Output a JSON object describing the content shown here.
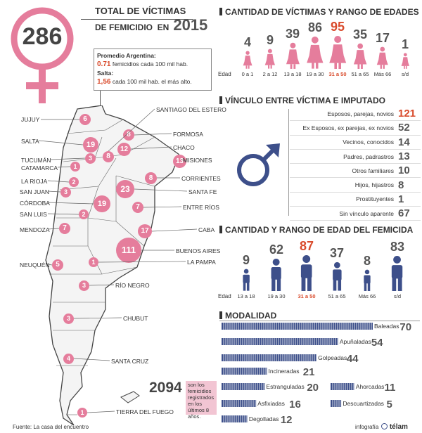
{
  "header": {
    "total": "286",
    "title_line1": "TOTAL DE VÍCTIMAS",
    "title_line2": "DE FEMICIDIO  EN",
    "year": "2015"
  },
  "promedio": {
    "line1": "Promedio Argentina:",
    "arg_value": "0.71",
    "arg_text": "femicidios cada 100 mil hab.",
    "salta_label": "Salta:",
    "salta_value": "1,56",
    "salta_text": "cada 100 mil hab. el más alto."
  },
  "map": {
    "provinces": [
      {
        "name": "JUJUY",
        "value": "6"
      },
      {
        "name": "SALTA",
        "value": "19"
      },
      {
        "name": "TUCUMÁN",
        "value": "3"
      },
      {
        "name": "CATAMARCA",
        "value": "1"
      },
      {
        "name": "LA RIOJA",
        "value": "2"
      },
      {
        "name": "SAN JUAN",
        "value": "3"
      },
      {
        "name": "CÓRDOBA",
        "value": "19"
      },
      {
        "name": "SAN LUIS",
        "value": "2"
      },
      {
        "name": "MENDOZA",
        "value": "7"
      },
      {
        "name": "NEUQUÉN",
        "value": "5"
      },
      {
        "name": "SANTIAGO DEL ESTERO",
        "value": "8"
      },
      {
        "name": "FORMOSA",
        "value": "8"
      },
      {
        "name": "CHACO",
        "value": "12"
      },
      {
        "name": "MISIONES",
        "value": "13"
      },
      {
        "name": "CORRIENTES",
        "value": "8"
      },
      {
        "name": "SANTA FE",
        "value": "23"
      },
      {
        "name": "ENTRE RÍOS",
        "value": "7"
      },
      {
        "name": "CABA",
        "value": "17"
      },
      {
        "name": "BUENOS AIRES",
        "value": "111"
      },
      {
        "name": "LA PAMPA",
        "value": "1"
      },
      {
        "name": "RÍO NEGRO",
        "value": "3"
      },
      {
        "name": "CHUBUT",
        "value": "3"
      },
      {
        "name": "SANTA CRUZ",
        "value": "4"
      },
      {
        "name": "TIERRA DEL FUEGO",
        "value": "1"
      }
    ]
  },
  "total_box": {
    "number": "2094",
    "text": "son los femicidios registrados en los últimos 8 años."
  },
  "footer": {
    "source": "Fuente: La casa del encuentro",
    "credit_prefix": "infografía",
    "credit_brand": "télam"
  },
  "chart_data": [
    {
      "type": "bar",
      "title": "CANTIDAD DE VÍCTIMAS Y RANGO DE EDADES",
      "axis_label": "Edad",
      "categories": [
        "0 a 1",
        "2 a 12",
        "13 a 18",
        "19 a 30",
        "31 a 50",
        "51 a 65",
        "Más 66",
        "s/d"
      ],
      "values": [
        4,
        9,
        39,
        86,
        95,
        35,
        17,
        1
      ],
      "highlight_index": 4,
      "highlight_color": "#d94b2c",
      "color": "#e57d9c"
    },
    {
      "type": "table",
      "title": "VÍNCULO ENTRE VÍCTIMA E IMPUTADO",
      "categories": [
        "Esposos, parejas, novios",
        "Ex Esposos, ex parejas, ex novios",
        "Vecinos, conocidos",
        "Padres, padrastros",
        "Otros familiares",
        "Hijos, hijastros",
        "Prostituyentes",
        "Sin vínculo aparente"
      ],
      "values": [
        121,
        52,
        14,
        13,
        10,
        8,
        1,
        67
      ],
      "highlight_index": 0,
      "highlight_color": "#d94b2c",
      "icon": "male-symbol-icon",
      "icon_color": "#3d4f8a"
    },
    {
      "type": "bar",
      "title": "CANTIDAD Y RANGO DE EDAD DEL FEMICIDA",
      "axis_label": "Edad",
      "categories": [
        "13 a 18",
        "19 a 30",
        "31 a 50",
        "51 a 65",
        "Más 66",
        "s/d"
      ],
      "values": [
        9,
        62,
        87,
        37,
        8,
        83
      ],
      "highlight_index": 2,
      "highlight_color": "#d94b2c",
      "color": "#3d4f8a"
    },
    {
      "type": "bar",
      "title": "MODALIDAD",
      "categories": [
        "Baleadas",
        "Apuñaladas",
        "Golpeadas",
        "Incineradas",
        "Estranguladas",
        "Ahorcadas",
        "Asfixiadas",
        "Descuartizadas",
        "Degolladas"
      ],
      "values": [
        70,
        54,
        44,
        21,
        20,
        11,
        16,
        5,
        12
      ],
      "color": "#3d4f8a"
    }
  ]
}
